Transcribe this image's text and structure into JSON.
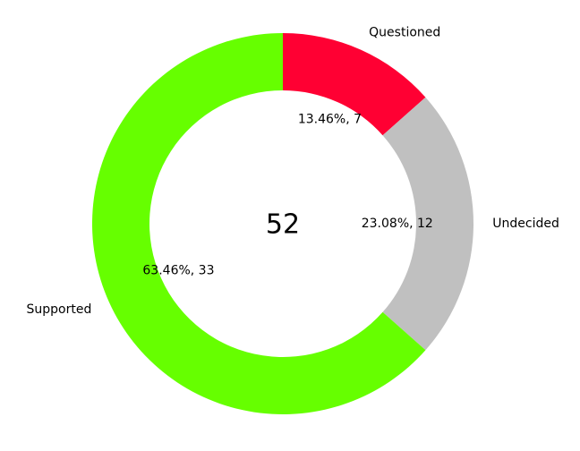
{
  "chart_data": {
    "type": "pie",
    "variant": "donut",
    "title": "",
    "center_label": "52",
    "start_angle_deg": 90,
    "direction": "clockwise",
    "slices": [
      {
        "label": "Questioned",
        "value": 7,
        "pct_label": "13.46%, 7",
        "color": "#ff0033"
      },
      {
        "label": "Undecided",
        "value": 12,
        "pct_label": "23.08%, 12",
        "color": "#c0c0c0"
      },
      {
        "label": "Supported",
        "value": 33,
        "pct_label": "63.46%, 33",
        "color": "#66ff00"
      }
    ],
    "legend": "none"
  }
}
